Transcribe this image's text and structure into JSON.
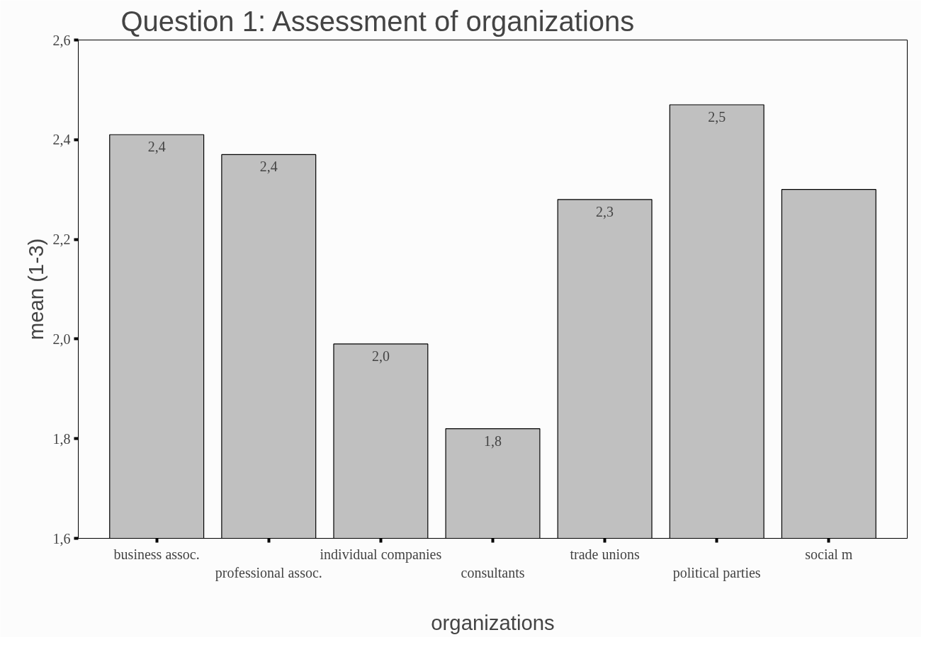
{
  "chart_data": {
    "type": "bar",
    "title": "Question 1: Assessment of organizations",
    "xlabel": "organizations",
    "ylabel": "mean (1-3)",
    "categories": [
      "business assoc.",
      "professional assoc.",
      "individual companies",
      "consultants",
      "trade unions",
      "political parties",
      "social m"
    ],
    "values": [
      2.41,
      2.37,
      1.99,
      1.82,
      2.28,
      2.47,
      2.3
    ],
    "value_labels": [
      "2,4",
      "2,4",
      "2,0",
      "1,8",
      "2,3",
      "2,5",
      null
    ],
    "color": "#c0c0c0",
    "ylim": [
      1.6,
      2.6
    ],
    "yticks": [
      {
        "value": 1.6,
        "label": "1,6"
      },
      {
        "value": 1.8,
        "label": "1,8"
      },
      {
        "value": 2.0,
        "label": "2,0"
      },
      {
        "value": 2.2,
        "label": "2,2"
      },
      {
        "value": 2.4,
        "label": "2,4"
      },
      {
        "value": 2.6,
        "label": "2,6"
      }
    ],
    "grid": false
  }
}
